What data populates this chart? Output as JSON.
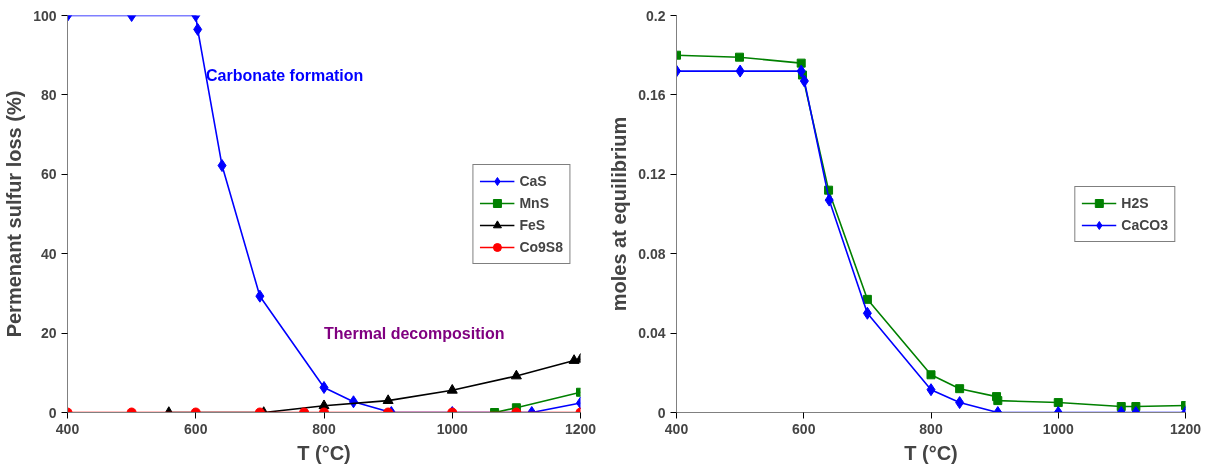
{
  "chart_data": [
    {
      "type": "line",
      "xlabel": "T (°C)",
      "ylabel": "Permenant sulfur loss (%)",
      "xlim": [
        400,
        1200
      ],
      "xticks": [
        400,
        600,
        800,
        1000,
        1200
      ],
      "ylim": [
        0,
        100
      ],
      "yticks": [
        0,
        20,
        40,
        60,
        80,
        100
      ],
      "grid": false,
      "legend": "right",
      "line_style": "solid",
      "annotations": [
        "Carbonate formation",
        "Thermal decomposition"
      ],
      "series": [
        {
          "name": "CaS",
          "color": "#0000ff",
          "marker": "diamond",
          "x": [
            400,
            500,
            600,
            603,
            641,
            700,
            800,
            846,
            905,
            1000,
            1124,
            1200
          ],
          "values": [
            100,
            100,
            100,
            96.5,
            62.2,
            29.3,
            6.3,
            2.7,
            0,
            0,
            0,
            2.4
          ]
        },
        {
          "name": "MnS",
          "color": "#008000",
          "marker": "square",
          "x": [
            1066,
            1100,
            1200
          ],
          "values": [
            0,
            1.2,
            5.1
          ]
        },
        {
          "name": "FeS",
          "color": "#000000",
          "marker": "triangle",
          "x": [
            558,
            706,
            800,
            900,
            1000,
            1100,
            1190,
            1200
          ],
          "values": [
            0,
            0,
            1.7,
            3.0,
            5.6,
            9.2,
            13.1,
            13.4
          ]
        },
        {
          "name": "Co9S8",
          "color": "#ff0000",
          "marker": "circle",
          "x": [
            400,
            500,
            600,
            700,
            769,
            800,
            900,
            1000,
            1100,
            1200
          ],
          "values": [
            0,
            0,
            0,
            0,
            0,
            0,
            0,
            0,
            0,
            0
          ]
        }
      ]
    },
    {
      "type": "line",
      "xlabel": "T (°C)",
      "ylabel": "moles at equilibrium",
      "xlim": [
        400,
        1200
      ],
      "xticks": [
        400,
        600,
        800,
        1000,
        1200
      ],
      "ylim": [
        0,
        0.2
      ],
      "yticks": [
        0,
        0.04,
        0.08,
        0.12,
        0.16,
        0.2
      ],
      "grid": false,
      "legend": "right",
      "line_style": "solid",
      "series": [
        {
          "name": "H2S",
          "color": "#008000",
          "marker": "square",
          "x": [
            400,
            499,
            596,
            598,
            639,
            700,
            800,
            845,
            903,
            905,
            1000,
            1099,
            1122,
            1200
          ],
          "values": [
            0.18,
            0.179,
            0.176,
            0.17,
            0.112,
            0.057,
            0.019,
            0.012,
            0.008,
            0.006,
            0.005,
            0.003,
            0.003,
            0.0035
          ]
        },
        {
          "name": "CaCO3",
          "color": "#0000ff",
          "marker": "diamond",
          "x": [
            400,
            500,
            596,
            601,
            640,
            700,
            800,
            845,
            905,
            1000,
            1099,
            1122,
            1200
          ],
          "values": [
            0.172,
            0.172,
            0.172,
            0.167,
            0.107,
            0.05,
            0.0115,
            0.005,
            0,
            0,
            0,
            0,
            0
          ]
        }
      ]
    }
  ]
}
